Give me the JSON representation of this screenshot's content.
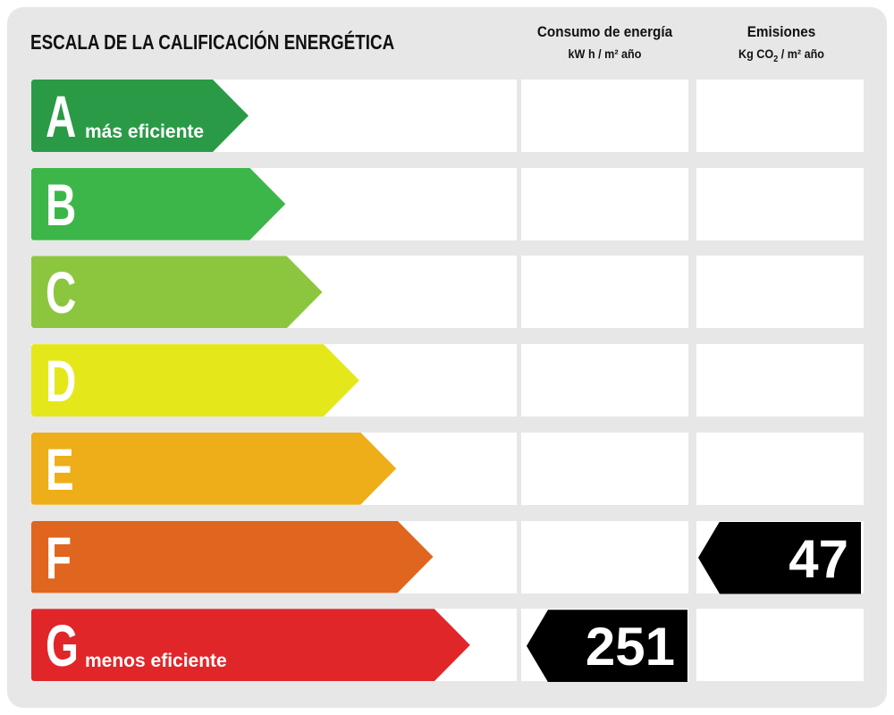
{
  "title": "ESCALA DE LA CALIFICACIÓN ENERGÉTICA",
  "columns": {
    "consumption": {
      "label": "Consumo de energía",
      "unit": "kW h / m² año"
    },
    "emissions": {
      "label": "Emisiones",
      "unit_prefix": "Kg CO",
      "unit_sub": "2",
      "unit_suffix": " / m² año"
    }
  },
  "ratings": [
    {
      "letter": "A",
      "sub": "más eficiente",
      "color": "#2a9a47"
    },
    {
      "letter": "B",
      "sub": "",
      "color": "#3cb649"
    },
    {
      "letter": "C",
      "sub": "",
      "color": "#8cc63f"
    },
    {
      "letter": "D",
      "sub": "",
      "color": "#e4e81a"
    },
    {
      "letter": "E",
      "sub": "",
      "color": "#edae19"
    },
    {
      "letter": "F",
      "sub": "",
      "color": "#e0651f"
    },
    {
      "letter": "G",
      "sub": "menos eficiente",
      "color": "#e1262a"
    }
  ],
  "consumption_value": {
    "rating": "G",
    "value": "251"
  },
  "emissions_value": {
    "rating": "F",
    "value": "47"
  }
}
